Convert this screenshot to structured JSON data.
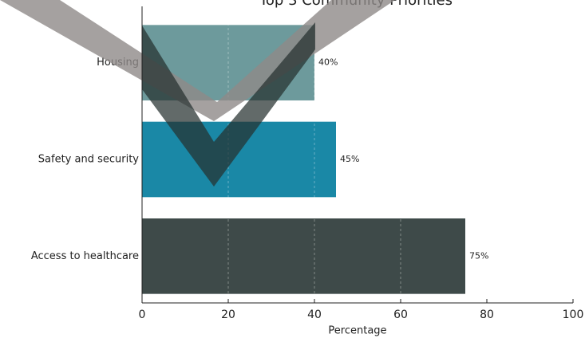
{
  "chart_data": {
    "type": "barh",
    "title": "Top 3 Community Priorities",
    "categories": [
      "Housing",
      "Safety and security",
      "Access to healthcare"
    ],
    "values": [
      40,
      45,
      75
    ],
    "value_labels": [
      "40%",
      "45%",
      "75%"
    ],
    "colors": [
      "#6d9a9c",
      "#1a88a6",
      "#3e4a49"
    ],
    "xlabel": "Percentage",
    "xlim": [
      0,
      100
    ],
    "xticks": [
      0,
      20,
      40,
      60,
      80,
      100
    ],
    "grid": true
  }
}
